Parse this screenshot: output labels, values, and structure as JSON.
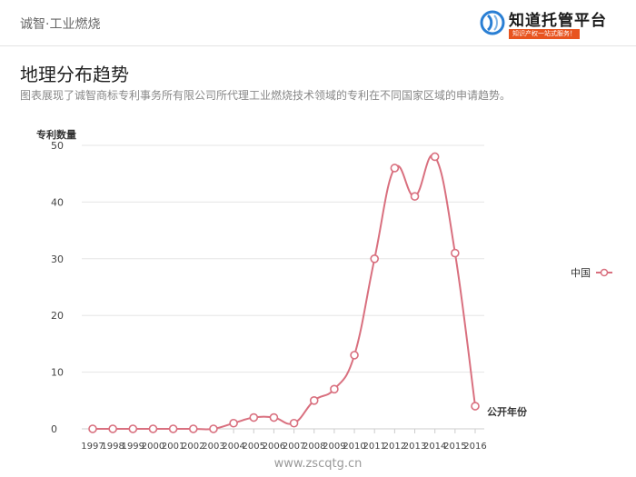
{
  "header": {
    "breadcrumb": "诚智·工业燃烧",
    "logo": {
      "name": "知道托管平台",
      "tagline": "知识产权一站式服务！"
    }
  },
  "section": {
    "title": "地理分布趋势",
    "description": "图表展现了诚智商标专利事务所有限公司所代理工业燃烧技术领域的专利在不同国家区域的申请趋势。"
  },
  "chart_data": {
    "type": "line",
    "x": [
      "1997",
      "1998",
      "1999",
      "2000",
      "2001",
      "2002",
      "2003",
      "2004",
      "2005",
      "2006",
      "2007",
      "2008",
      "2009",
      "2010",
      "2011",
      "2012",
      "2013",
      "2014",
      "2015",
      "2016"
    ],
    "series": [
      {
        "name": "中国",
        "values": [
          0,
          0,
          0,
          0,
          0,
          0,
          0,
          1,
          2,
          2,
          1,
          5,
          7,
          13,
          30,
          46,
          41,
          48,
          31,
          4
        ]
      }
    ],
    "xlabel": "公开年份",
    "ylabel": "专利数量",
    "yticks": [
      0,
      10,
      20,
      30,
      40,
      50
    ],
    "ylim": [
      0,
      50
    ],
    "grid": true,
    "legend_position": "right",
    "colors": {
      "line": "#d9707f",
      "marker_fill": "#ffffff",
      "grid": "#e5e5e5",
      "axis": "#cccccc"
    }
  },
  "footer": {
    "watermark": "www.zscqtg.cn"
  }
}
